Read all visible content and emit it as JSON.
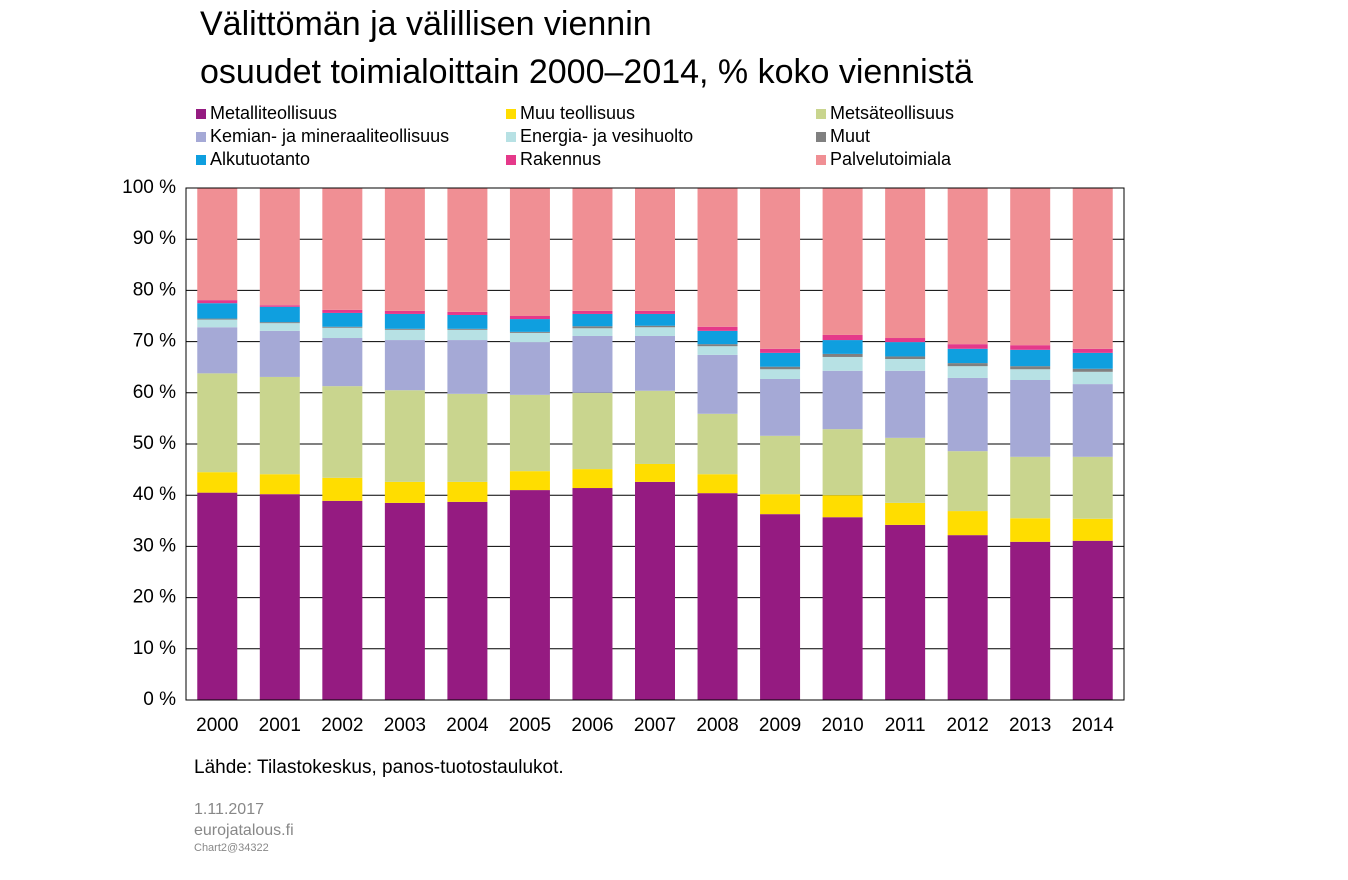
{
  "chart_data": {
    "type": "stacked_bar",
    "title": [
      "Välittömän ja välillisen viennin",
      "osuudet toimialoittain 2000–2014, % koko viennistä"
    ],
    "categories": [
      "2000",
      "2001",
      "2002",
      "2003",
      "2004",
      "2005",
      "2006",
      "2007",
      "2008",
      "2009",
      "2010",
      "2011",
      "2012",
      "2013",
      "2014"
    ],
    "series": [
      {
        "name": "Metalliteollisuus",
        "color": "#951b81",
        "values": [
          40.5,
          40.2,
          38.9,
          38.5,
          38.7,
          41.0,
          41.4,
          42.6,
          40.4,
          36.3,
          35.7,
          34.2,
          32.2,
          30.9,
          31.1
        ]
      },
      {
        "name": "Muu teollisuus",
        "color": "#ffdd00",
        "values": [
          4.0,
          3.9,
          4.5,
          4.1,
          3.9,
          3.7,
          3.7,
          3.5,
          3.7,
          3.9,
          4.3,
          4.3,
          4.7,
          4.6,
          4.3
        ]
      },
      {
        "name": "Metsäteollisuus",
        "color": "#c9d58e",
        "values": [
          19.3,
          19.0,
          17.9,
          17.9,
          17.2,
          14.9,
          14.9,
          14.3,
          11.8,
          11.4,
          12.9,
          12.7,
          11.7,
          12.0,
          12.1
        ]
      },
      {
        "name": "Kemian- ja mineraaliteollisuus",
        "color": "#a5a9d6",
        "values": [
          9.0,
          9.0,
          9.4,
          9.8,
          10.5,
          10.3,
          11.1,
          10.7,
          11.5,
          11.1,
          11.4,
          13.1,
          14.3,
          15.0,
          14.2
        ]
      },
      {
        "name": "Energia- ja vesihuolto",
        "color": "#b7e1e4",
        "values": [
          1.5,
          1.5,
          2.0,
          2.0,
          2.0,
          1.8,
          1.5,
          1.7,
          1.7,
          1.9,
          2.7,
          2.3,
          2.3,
          2.1,
          2.4
        ]
      },
      {
        "name": "Muut",
        "color": "#808080",
        "values": [
          0.2,
          0.2,
          0.2,
          0.2,
          0.2,
          0.2,
          0.4,
          0.3,
          0.4,
          0.5,
          0.6,
          0.5,
          0.6,
          0.6,
          0.6
        ]
      },
      {
        "name": "Alkutuotanto",
        "color": "#0f9fdf",
        "values": [
          3.0,
          3.0,
          2.7,
          2.9,
          2.7,
          2.5,
          2.4,
          2.3,
          2.6,
          2.7,
          2.7,
          2.8,
          2.8,
          3.2,
          3.1
        ]
      },
      {
        "name": "Rakennus",
        "color": "#e5398a",
        "values": [
          0.6,
          0.3,
          0.6,
          0.6,
          0.6,
          0.6,
          0.6,
          0.6,
          0.8,
          0.8,
          1.0,
          0.8,
          0.9,
          0.9,
          0.8
        ]
      },
      {
        "name": "Palvelutoimiala",
        "color": "#f08f94",
        "values": [
          21.9,
          22.9,
          23.8,
          24.0,
          24.2,
          25.0,
          24.0,
          24.0,
          27.1,
          31.4,
          28.7,
          29.3,
          30.5,
          30.7,
          31.4
        ]
      }
    ],
    "ylim": [
      0,
      100
    ],
    "yticks": [
      {
        "value": 0,
        "label": "0 %"
      },
      {
        "value": 10,
        "label": "10 %"
      },
      {
        "value": 20,
        "label": "20 %"
      },
      {
        "value": 30,
        "label": "30 %"
      },
      {
        "value": 40,
        "label": "40 %"
      },
      {
        "value": 50,
        "label": "50 %"
      },
      {
        "value": 60,
        "label": "60 %"
      },
      {
        "value": 70,
        "label": "70 %"
      },
      {
        "value": 80,
        "label": "80 %"
      },
      {
        "value": 90,
        "label": "90 %"
      },
      {
        "value": 100,
        "label": "100 %"
      }
    ],
    "grid": true,
    "source": "Lähde: Tilastokeskus, panos-tuotostaulukot.",
    "date": "1.11.2017",
    "site": "eurojatalous.fi",
    "chart_id": "Chart2@34322"
  }
}
